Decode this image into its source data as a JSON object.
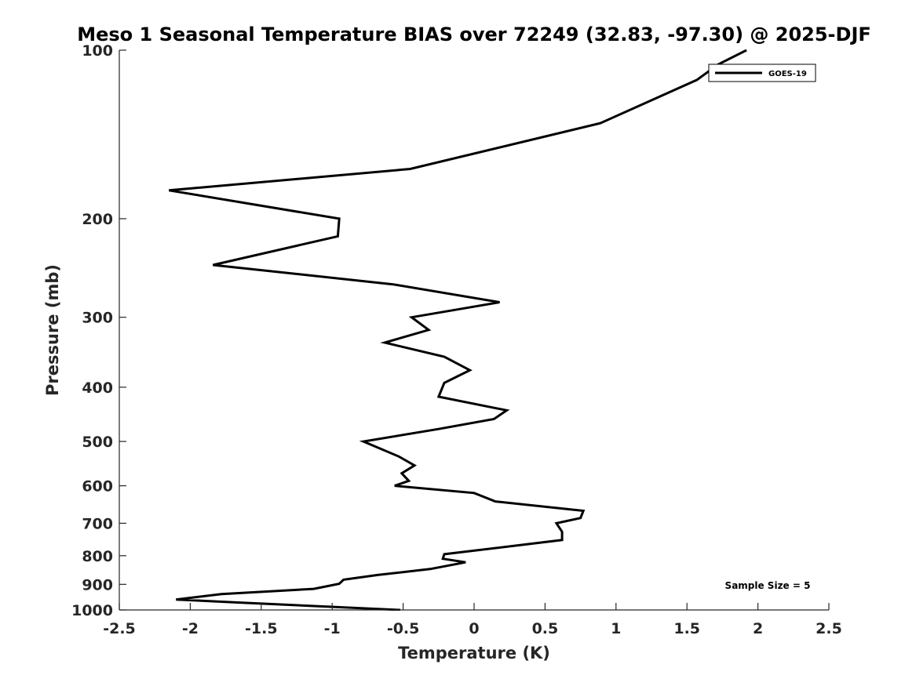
{
  "chart_data": {
    "type": "line",
    "title": "Meso 1 Seasonal Temperature BIAS over 72249 (32.83, -97.30) @ 2025-DJF",
    "xlabel": "Temperature (K)",
    "ylabel": "Pressure (mb)",
    "xlim": [
      -2.5,
      2.5
    ],
    "ylim": [
      100,
      1000
    ],
    "y_scale": "log",
    "y_direction": "reversed",
    "x_ticks": [
      -2.5,
      -2,
      -1.5,
      -1,
      -0.5,
      0,
      0.5,
      1,
      1.5,
      2,
      2.5
    ],
    "x_tick_labels": [
      "-2.5",
      "-2",
      "-1.5",
      "-1",
      "-0.5",
      "0",
      "0.5",
      "1",
      "1.5",
      "2",
      "2.5"
    ],
    "y_ticks": [
      100,
      200,
      300,
      400,
      500,
      600,
      700,
      800,
      900,
      1000
    ],
    "y_tick_labels": [
      "100",
      "200",
      "300",
      "400",
      "500",
      "600",
      "700",
      "800",
      "900",
      "1000"
    ],
    "grid": false,
    "legend_position": "top-right",
    "color": "#000000",
    "series": [
      {
        "name": "GOES-19",
        "points": [
          {
            "x": 1.92,
            "y": 100
          },
          {
            "x": 1.72,
            "y": 106
          },
          {
            "x": 1.57,
            "y": 113
          },
          {
            "x": 0.89,
            "y": 135
          },
          {
            "x": -0.45,
            "y": 163
          },
          {
            "x": -2.15,
            "y": 178
          },
          {
            "x": -0.95,
            "y": 200
          },
          {
            "x": -0.96,
            "y": 215
          },
          {
            "x": -1.84,
            "y": 242
          },
          {
            "x": -0.57,
            "y": 262
          },
          {
            "x": 0.18,
            "y": 282
          },
          {
            "x": -0.44,
            "y": 300
          },
          {
            "x": -0.32,
            "y": 316
          },
          {
            "x": -0.63,
            "y": 333
          },
          {
            "x": -0.21,
            "y": 353
          },
          {
            "x": -0.03,
            "y": 373
          },
          {
            "x": -0.21,
            "y": 393
          },
          {
            "x": -0.25,
            "y": 416
          },
          {
            "x": 0.23,
            "y": 440
          },
          {
            "x": 0.14,
            "y": 456
          },
          {
            "x": -0.25,
            "y": 475
          },
          {
            "x": -0.78,
            "y": 500
          },
          {
            "x": -0.53,
            "y": 532
          },
          {
            "x": -0.42,
            "y": 552
          },
          {
            "x": -0.51,
            "y": 570
          },
          {
            "x": -0.46,
            "y": 588
          },
          {
            "x": -0.56,
            "y": 600
          },
          {
            "x": 0.0,
            "y": 618
          },
          {
            "x": 0.15,
            "y": 640
          },
          {
            "x": 0.77,
            "y": 665
          },
          {
            "x": 0.75,
            "y": 685
          },
          {
            "x": 0.58,
            "y": 700
          },
          {
            "x": 0.62,
            "y": 725
          },
          {
            "x": 0.62,
            "y": 750
          },
          {
            "x": -0.21,
            "y": 795
          },
          {
            "x": -0.22,
            "y": 810
          },
          {
            "x": -0.06,
            "y": 822
          },
          {
            "x": -0.31,
            "y": 845
          },
          {
            "x": -0.68,
            "y": 866
          },
          {
            "x": -0.92,
            "y": 883
          },
          {
            "x": -0.95,
            "y": 898
          },
          {
            "x": -1.13,
            "y": 917
          },
          {
            "x": -1.78,
            "y": 937
          },
          {
            "x": -2.1,
            "y": 958
          },
          {
            "x": -1.65,
            "y": 970
          },
          {
            "x": -0.52,
            "y": 1000
          }
        ]
      }
    ],
    "annotations": [
      "Sample Size = 5"
    ]
  }
}
